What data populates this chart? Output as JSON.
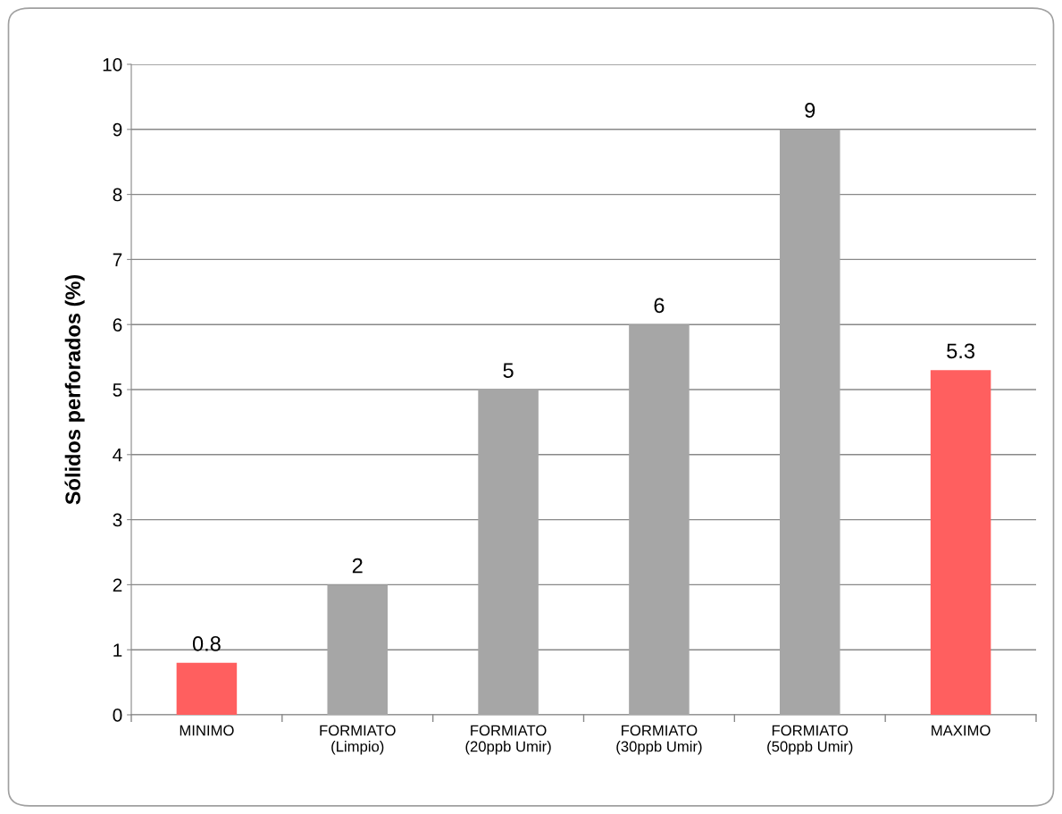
{
  "chart_data": {
    "type": "bar",
    "ylabel": "Sólidos perforados (%)",
    "categories": [
      "MINIMO",
      "FORMIATO\n(Limpio)",
      "FORMIATO\n(20ppb Umir)",
      "FORMIATO\n(30ppb Umir)",
      "FORMIATO\n(50ppb Umir)",
      "MAXIMO"
    ],
    "values": [
      0.8,
      2,
      5,
      6,
      9,
      5.3
    ],
    "colors": [
      "#ff5f5f",
      "#a6a6a6",
      "#a6a6a6",
      "#a6a6a6",
      "#a6a6a6",
      "#ff5f5f"
    ],
    "ylim": [
      0,
      10
    ],
    "yticks": [
      0,
      1,
      2,
      3,
      4,
      5,
      6,
      7,
      8,
      9,
      10
    ],
    "grid": "y",
    "data_labels": true
  }
}
